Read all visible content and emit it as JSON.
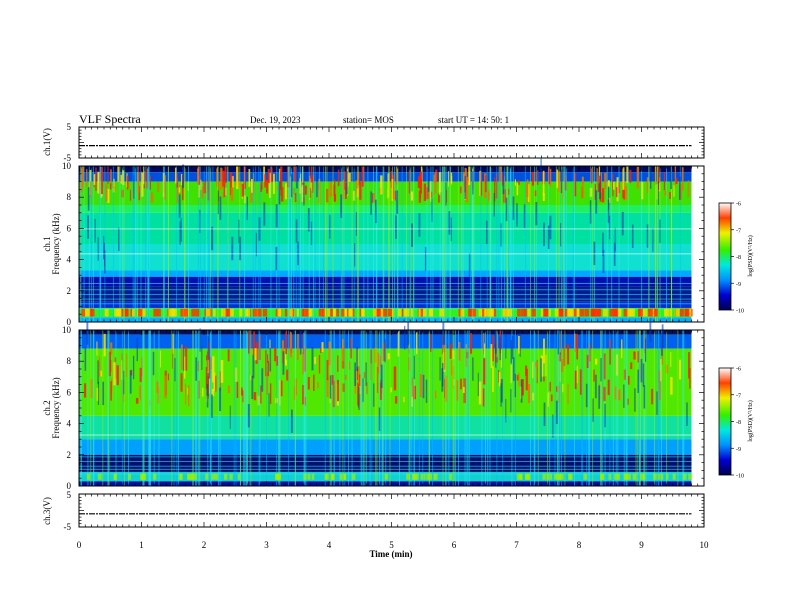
{
  "header": {
    "title": "VLF Spectra",
    "date": "Dec. 19, 2023",
    "station": "station= MOS",
    "start": "start  UT  =   14: 50: 1"
  },
  "chart_data": [
    {
      "type": "line",
      "panel": "ch1-waveform",
      "ylabel": "ch.1(V)",
      "ylim": [
        -5,
        5
      ],
      "yticks": [
        "5",
        "-5"
      ],
      "x": [
        0,
        9.8
      ],
      "values": [
        -1,
        -1
      ],
      "xlim": [
        0,
        10
      ]
    },
    {
      "type": "heatmap",
      "panel": "ch1-spectrogram",
      "ylabel": [
        "ch.1",
        "Frequency (kHz)"
      ],
      "ylim": [
        0,
        10
      ],
      "yticks": [
        "0",
        "2",
        "4",
        "6",
        "8",
        "10"
      ],
      "xlim": [
        0,
        10
      ],
      "x_data_end": 9.8,
      "colorbar": {
        "label": "log(PSD)(V²/Hz)",
        "range": [
          -10,
          -6
        ],
        "ticks": [
          "-6",
          "-7",
          "-8",
          "-9",
          "-10"
        ]
      }
    },
    {
      "type": "heatmap",
      "panel": "ch2-spectrogram",
      "ylabel": [
        "ch.2",
        "Frequency (kHz)"
      ],
      "ylim": [
        0,
        10
      ],
      "yticks": [
        "0",
        "2",
        "4",
        "6",
        "8",
        "10"
      ],
      "xlim": [
        0,
        10
      ],
      "x_data_end": 9.8,
      "colorbar": {
        "label": "log(PSD)(V²/Hz)",
        "range": [
          -10,
          -6
        ],
        "ticks": [
          "-6",
          "-7",
          "-8",
          "-9",
          "-10"
        ]
      }
    },
    {
      "type": "line",
      "panel": "ch3-waveform",
      "ylabel": "ch.3(V)",
      "ylim": [
        -5,
        5
      ],
      "yticks": [
        "5",
        "-5"
      ],
      "x": [
        0,
        9.8
      ],
      "values": [
        -1,
        -1
      ],
      "xlim": [
        0,
        10
      ],
      "xlabel": "Time  (min)",
      "xticks": [
        "0",
        "1",
        "2",
        "3",
        "4",
        "5",
        "6",
        "7",
        "8",
        "9",
        "10"
      ]
    }
  ]
}
